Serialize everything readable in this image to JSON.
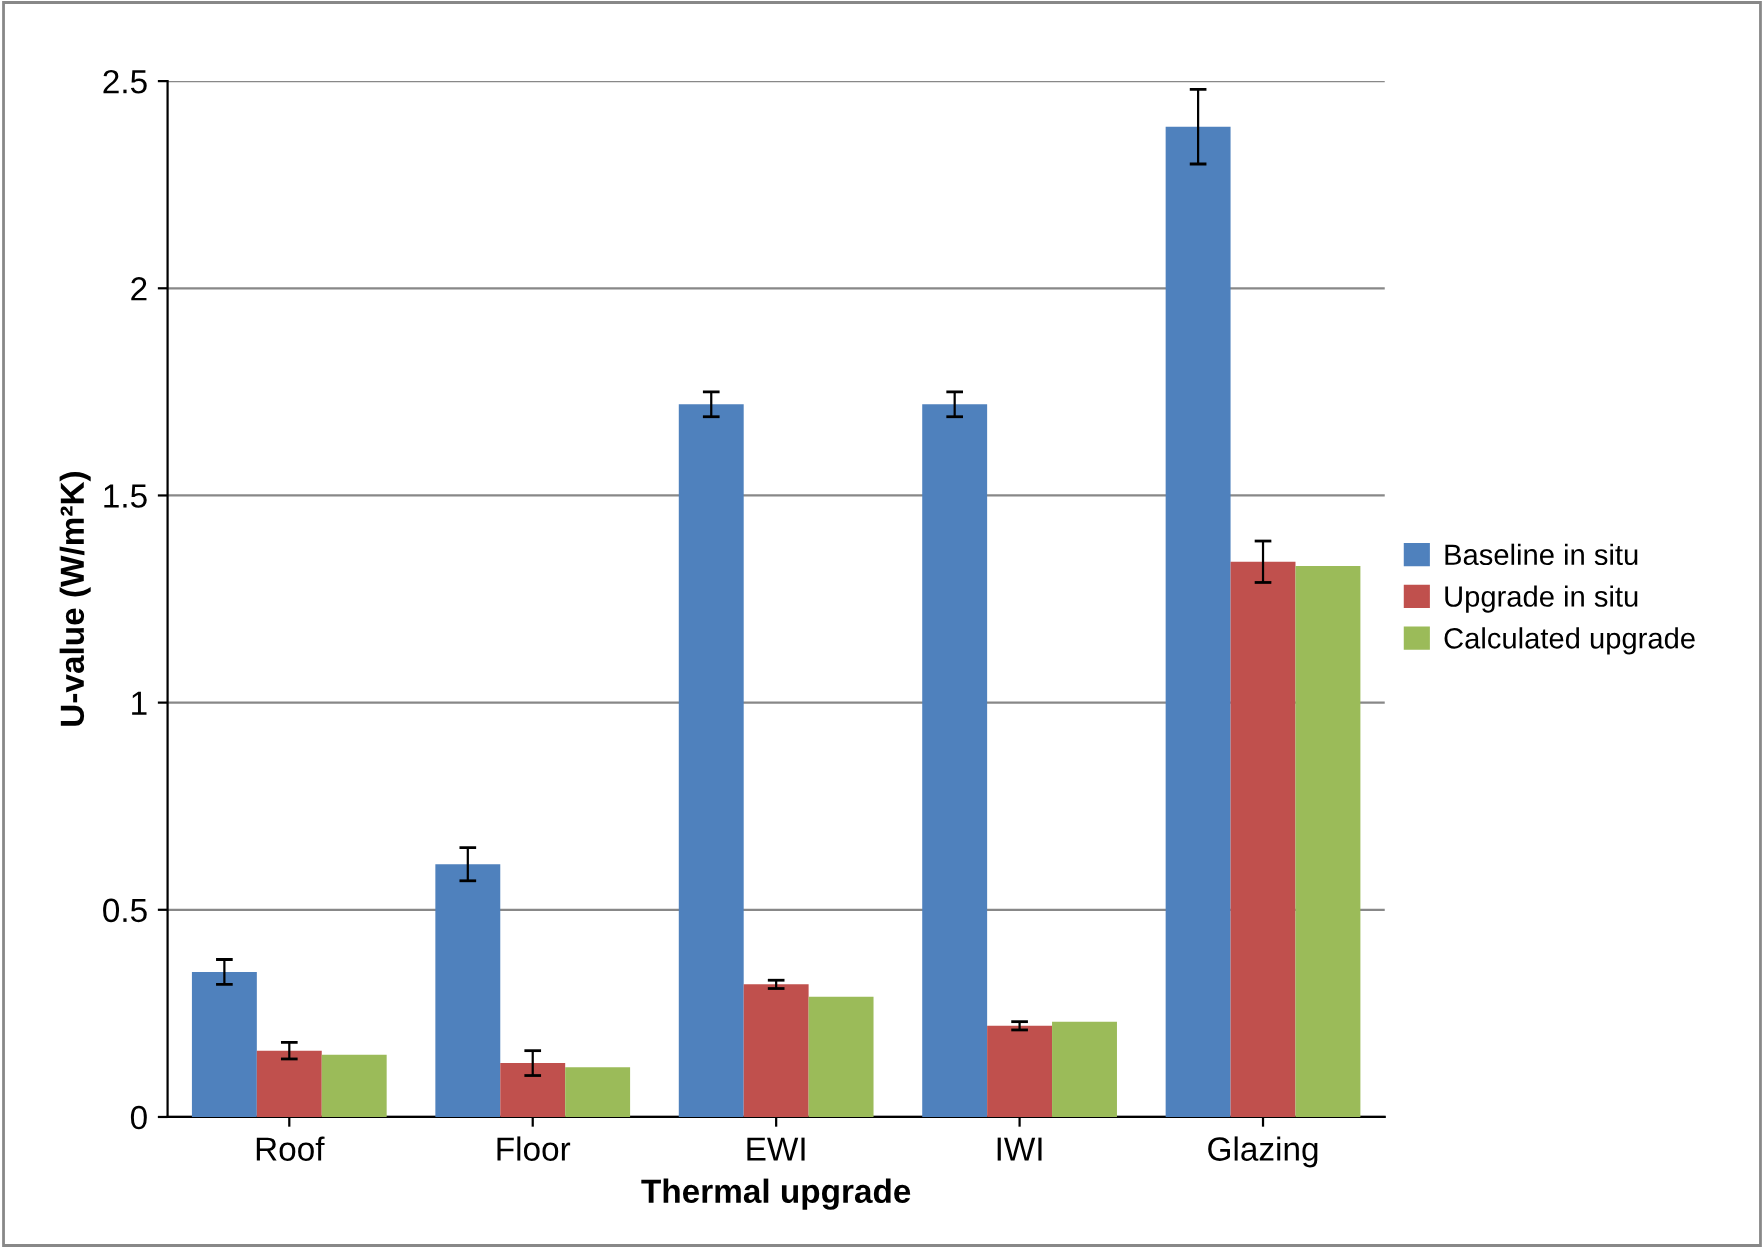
{
  "chart_data": {
    "type": "bar",
    "xlabel": "Thermal upgrade",
    "ylabel": "U-value (W/m²K)",
    "categories": [
      "Roof",
      "Floor",
      "EWI",
      "IWI",
      "Glazing"
    ],
    "series": [
      {
        "name": "Baseline in situ",
        "color": "#4f81bd",
        "values": [
          0.35,
          0.61,
          1.72,
          1.72,
          2.39
        ],
        "errors": [
          0.03,
          0.04,
          0.03,
          0.03,
          0.09
        ]
      },
      {
        "name": "Upgrade in situ",
        "color": "#c0504d",
        "values": [
          0.16,
          0.13,
          0.32,
          0.22,
          1.34
        ],
        "errors": [
          0.02,
          0.03,
          0.01,
          0.01,
          0.05
        ]
      },
      {
        "name": "Calculated upgrade",
        "color": "#9bbb59",
        "values": [
          0.15,
          0.12,
          0.29,
          0.23,
          1.33
        ]
      }
    ],
    "ylim": [
      0,
      2.5
    ],
    "yticks": [
      0,
      0.5,
      1,
      1.5,
      2,
      2.5
    ],
    "grid": "y",
    "legend": "right"
  }
}
